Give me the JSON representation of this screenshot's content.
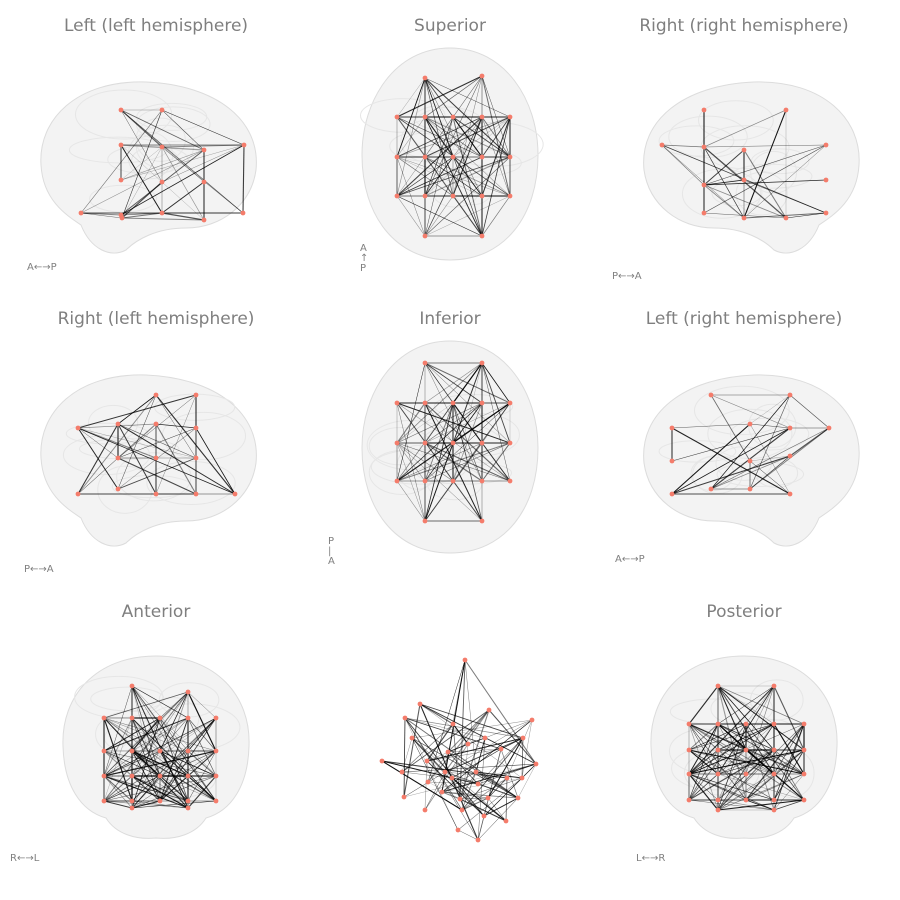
{
  "figure": {
    "node_color": "#f47c6b",
    "edge_color": "#000000",
    "brain_color": "#e9e9e9",
    "panels": [
      {
        "id": "left-lh",
        "title": "Left (left hemisphere)",
        "view": "sagittal",
        "orientation": "A←→P"
      },
      {
        "id": "superior",
        "title": "Superior",
        "view": "axial",
        "orientation": "A\n↑\nP"
      },
      {
        "id": "right-rh",
        "title": "Right (right hemisphere)",
        "view": "sagittal",
        "orientation": "P←→A"
      },
      {
        "id": "right-lh",
        "title": "Right (left hemisphere)",
        "view": "sagittal",
        "orientation": "P←→A"
      },
      {
        "id": "inferior",
        "title": "Inferior",
        "view": "axial",
        "orientation": "P\n|\nA"
      },
      {
        "id": "left-rh",
        "title": "Left (right hemisphere)",
        "view": "sagittal",
        "orientation": "A←→P"
      },
      {
        "id": "anterior",
        "title": "Anterior",
        "view": "coronal",
        "orientation": "R←→L"
      },
      {
        "id": "network",
        "title": "",
        "view": "graph",
        "orientation": ""
      },
      {
        "id": "posterior",
        "title": "Posterior",
        "view": "coronal",
        "orientation": "L←→R"
      }
    ]
  }
}
